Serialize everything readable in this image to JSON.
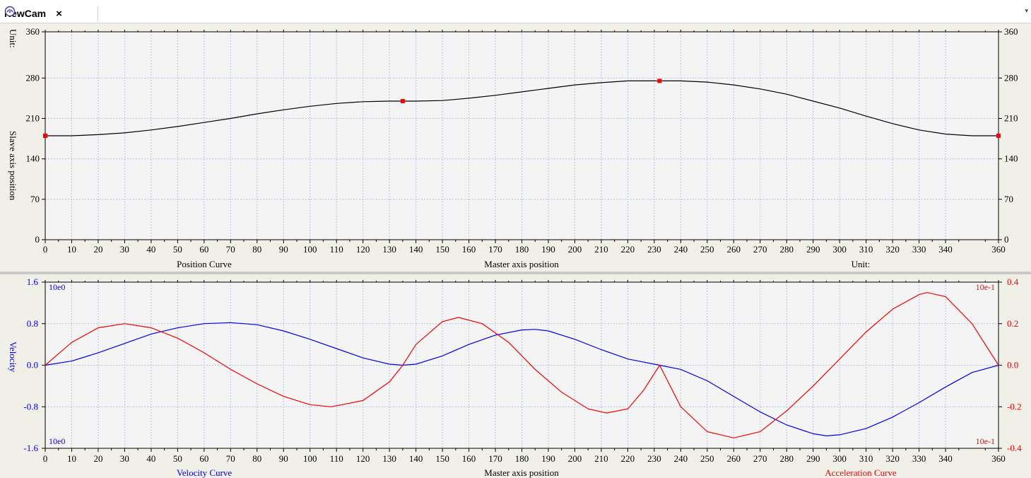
{
  "tab": {
    "title": "NewCam",
    "close": "×",
    "icon": "cam-icon"
  },
  "position_chart": {
    "unit_top": "Unit:",
    "ylabel": "Slave axis position",
    "xlabel": "Master axis position",
    "curve_name": "Position Curve",
    "unit_bottom": "Unit:",
    "y_ticks": [
      "0",
      "70",
      "140",
      "210",
      "280",
      "360"
    ],
    "x_ticks": [
      "0",
      "10",
      "20",
      "30",
      "40",
      "50",
      "60",
      "70",
      "80",
      "90",
      "100",
      "110",
      "120",
      "130",
      "140",
      "150",
      "160",
      "170",
      "180",
      "190",
      "200",
      "210",
      "220",
      "230",
      "240",
      "250",
      "260",
      "270",
      "280",
      "290",
      "300",
      "310",
      "320",
      "330",
      "340",
      "360"
    ]
  },
  "motion_chart": {
    "ylabel": "Velocity",
    "xlabel": "Master axis position",
    "velocity_name": "Velocity Curve",
    "acceleration_name": "Acceleration Curve",
    "left_scale": "10e0",
    "right_scale": "10e-1",
    "left_ticks": [
      "1.6",
      "0.8",
      "0.0",
      "-0.8",
      "-1.6"
    ],
    "right_ticks": [
      "0.4",
      "0.2",
      "0.0",
      "-0.2",
      "-0.4"
    ],
    "x_ticks": [
      "0",
      "10",
      "20",
      "30",
      "40",
      "50",
      "60",
      "70",
      "80",
      "90",
      "100",
      "110",
      "120",
      "130",
      "140",
      "150",
      "160",
      "170",
      "180",
      "190",
      "200",
      "210",
      "220",
      "230",
      "240",
      "250",
      "260",
      "270",
      "280",
      "290",
      "300",
      "310",
      "320",
      "330",
      "340",
      "360"
    ]
  },
  "colors": {
    "velocity": "#0000ff",
    "acceleration": "#ff0000",
    "position": "#000000",
    "keypoint": "#ff0000",
    "grid": "#b8c4e6",
    "panel": "#f0efe8"
  },
  "chart_data": [
    {
      "type": "line",
      "title": "Position Curve",
      "xlabel": "Master axis position",
      "ylabel": "Slave axis position",
      "xlim": [
        0,
        360
      ],
      "ylim": [
        0,
        360
      ],
      "grid": true,
      "keypoints": [
        [
          0,
          180
        ],
        [
          135,
          240
        ],
        [
          232,
          275
        ],
        [
          360,
          180
        ]
      ],
      "series": [
        {
          "name": "Position Curve",
          "x": [
            0,
            10,
            20,
            30,
            40,
            50,
            60,
            70,
            80,
            90,
            100,
            110,
            120,
            130,
            135,
            140,
            150,
            160,
            170,
            180,
            190,
            200,
            210,
            220,
            232,
            240,
            250,
            260,
            270,
            280,
            290,
            300,
            310,
            320,
            330,
            340,
            350,
            360
          ],
          "y": [
            180,
            180,
            182,
            185,
            190,
            196,
            203,
            210,
            218,
            225,
            231,
            236,
            239,
            240,
            240,
            240,
            241,
            245,
            250,
            256,
            262,
            268,
            272,
            275,
            275,
            275,
            273,
            268,
            261,
            252,
            240,
            228,
            214,
            201,
            190,
            183,
            180,
            180
          ]
        }
      ]
    },
    {
      "type": "line",
      "xlabel": "Master axis position",
      "ylabel": "Velocity",
      "xlim": [
        0,
        360
      ],
      "ylim_left": [
        -1.6,
        1.6
      ],
      "ylim_right": [
        -0.4,
        0.4
      ],
      "grid": true,
      "series": [
        {
          "name": "Velocity Curve",
          "axis": "left",
          "x": [
            0,
            10,
            20,
            30,
            40,
            50,
            60,
            70,
            80,
            90,
            100,
            110,
            120,
            130,
            135,
            140,
            150,
            160,
            170,
            180,
            185,
            190,
            200,
            210,
            220,
            232,
            240,
            250,
            260,
            270,
            280,
            290,
            295,
            300,
            310,
            320,
            330,
            340,
            350,
            360
          ],
          "y": [
            0,
            0.08,
            0.24,
            0.42,
            0.6,
            0.72,
            0.8,
            0.82,
            0.78,
            0.66,
            0.5,
            0.32,
            0.14,
            0.02,
            0,
            0.02,
            0.18,
            0.4,
            0.58,
            0.68,
            0.69,
            0.66,
            0.5,
            0.3,
            0.12,
            0,
            -0.08,
            -0.3,
            -0.6,
            -0.9,
            -1.15,
            -1.32,
            -1.36,
            -1.34,
            -1.22,
            -1.0,
            -0.72,
            -0.42,
            -0.14,
            0
          ]
        },
        {
          "name": "Acceleration Curve",
          "axis": "right",
          "x": [
            0,
            10,
            20,
            30,
            40,
            50,
            60,
            70,
            80,
            90,
            100,
            108,
            120,
            130,
            135,
            140,
            150,
            156,
            165,
            175,
            185,
            195,
            205,
            212,
            220,
            226,
            232,
            240,
            250,
            260,
            270,
            280,
            290,
            300,
            310,
            320,
            330,
            333,
            340,
            350,
            360
          ],
          "y": [
            0,
            0.11,
            0.18,
            0.2,
            0.18,
            0.13,
            0.06,
            -0.02,
            -0.09,
            -0.15,
            -0.19,
            -0.2,
            -0.17,
            -0.08,
            0,
            0.1,
            0.21,
            0.23,
            0.2,
            0.11,
            -0.02,
            -0.13,
            -0.21,
            -0.23,
            -0.21,
            -0.12,
            0,
            -0.2,
            -0.32,
            -0.35,
            -0.32,
            -0.22,
            -0.1,
            0.03,
            0.16,
            0.27,
            0.34,
            0.35,
            0.33,
            0.2,
            0
          ]
        }
      ]
    }
  ]
}
